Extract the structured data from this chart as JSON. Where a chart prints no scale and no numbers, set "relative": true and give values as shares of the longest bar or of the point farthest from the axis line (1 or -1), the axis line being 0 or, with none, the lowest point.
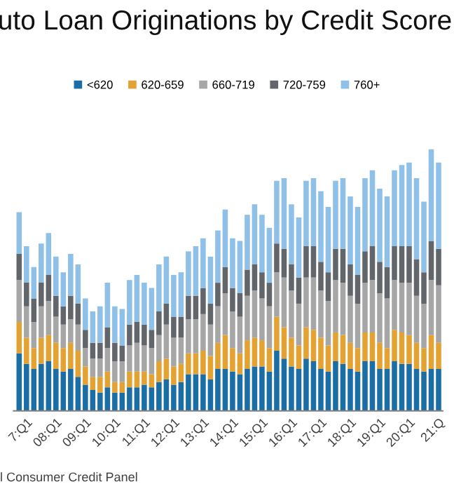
{
  "chart_data": {
    "type": "bar",
    "title": "uto Loan Originations by Credit Score",
    "stacked": true,
    "relative": true,
    "legend": "top",
    "categories": [
      null,
      "7:Q1",
      null,
      null,
      null,
      "08:Q1",
      null,
      null,
      null,
      "09:Q1",
      null,
      null,
      null,
      "10:Q1",
      null,
      null,
      null,
      "11:Q1",
      null,
      null,
      null,
      "12:Q1",
      null,
      null,
      null,
      "13:Q1",
      null,
      null,
      null,
      "14:Q1",
      null,
      null,
      null,
      "15:Q1",
      null,
      null,
      null,
      "16:Q1",
      null,
      null,
      null,
      "17:Q1",
      null,
      null,
      null,
      "18:Q1",
      null,
      null,
      null,
      "19:Q1",
      null,
      null,
      null,
      "20:Q1",
      null,
      null,
      null,
      "21:Q"
    ],
    "series": [
      {
        "name": "<620",
        "color": "#1b6ea5",
        "values": [
          0.22,
          0.18,
          0.16,
          0.18,
          0.19,
          0.16,
          0.15,
          0.16,
          0.13,
          0.1,
          0.08,
          0.07,
          0.09,
          0.07,
          0.07,
          0.09,
          0.09,
          0.1,
          0.09,
          0.11,
          0.12,
          0.1,
          0.11,
          0.14,
          0.14,
          0.14,
          0.12,
          0.16,
          0.16,
          0.15,
          0.14,
          0.16,
          0.17,
          0.17,
          0.15,
          0.23,
          0.2,
          0.17,
          0.16,
          0.2,
          0.19,
          0.16,
          0.15,
          0.19,
          0.18,
          0.16,
          0.15,
          0.19,
          0.19,
          0.16,
          0.16,
          0.19,
          0.18,
          0.18,
          0.16,
          0.15,
          0.16,
          0.16
        ]
      },
      {
        "name": "620-659",
        "color": "#e3a232",
        "values": [
          0.12,
          0.1,
          0.08,
          0.1,
          0.1,
          0.1,
          0.09,
          0.1,
          0.1,
          0.07,
          0.05,
          0.06,
          0.06,
          0.04,
          0.04,
          0.06,
          0.06,
          0.05,
          0.05,
          0.08,
          0.08,
          0.07,
          0.07,
          0.08,
          0.08,
          0.09,
          0.09,
          0.1,
          0.13,
          0.09,
          0.08,
          0.11,
          0.11,
          0.1,
          0.09,
          0.13,
          0.12,
          0.11,
          0.09,
          0.12,
          0.12,
          0.12,
          0.1,
          0.11,
          0.11,
          0.1,
          0.09,
          0.11,
          0.11,
          0.1,
          0.08,
          0.12,
          0.12,
          0.11,
          0.1,
          0.09,
          0.13,
          0.1
        ]
      },
      {
        "name": "660-719",
        "color": "#a6a6a6",
        "values": [
          0.16,
          0.12,
          0.1,
          0.12,
          0.13,
          0.1,
          0.09,
          0.09,
          0.1,
          0.07,
          0.07,
          0.07,
          0.09,
          0.08,
          0.08,
          0.1,
          0.11,
          0.1,
          0.1,
          0.1,
          0.13,
          0.11,
          0.1,
          0.13,
          0.13,
          0.14,
          0.12,
          0.14,
          0.16,
          0.14,
          0.14,
          0.17,
          0.18,
          0.16,
          0.16,
          0.17,
          0.19,
          0.18,
          0.16,
          0.19,
          0.2,
          0.18,
          0.17,
          0.2,
          0.2,
          0.18,
          0.17,
          0.19,
          0.2,
          0.19,
          0.19,
          0.19,
          0.19,
          0.2,
          0.18,
          0.17,
          0.21,
          0.22
        ]
      },
      {
        "name": "720-759",
        "color": "#62666b",
        "values": [
          0.1,
          0.09,
          0.09,
          0.09,
          0.1,
          0.08,
          0.07,
          0.09,
          0.08,
          0.07,
          0.06,
          0.06,
          0.08,
          0.07,
          0.06,
          0.08,
          0.08,
          0.08,
          0.07,
          0.09,
          0.08,
          0.08,
          0.08,
          0.09,
          0.09,
          0.1,
          0.08,
          0.09,
          0.1,
          0.09,
          0.09,
          0.1,
          0.1,
          0.1,
          0.09,
          0.11,
          0.11,
          0.1,
          0.1,
          0.12,
          0.12,
          0.11,
          0.11,
          0.12,
          0.13,
          0.12,
          0.11,
          0.12,
          0.13,
          0.12,
          0.12,
          0.13,
          0.14,
          0.14,
          0.14,
          0.12,
          0.15,
          0.14
        ]
      },
      {
        "name": "760+",
        "color": "#8fc0e8",
        "values": [
          0.16,
          0.14,
          0.12,
          0.15,
          0.16,
          0.15,
          0.13,
          0.16,
          0.15,
          0.12,
          0.12,
          0.14,
          0.17,
          0.14,
          0.14,
          0.17,
          0.18,
          0.16,
          0.16,
          0.18,
          0.18,
          0.16,
          0.17,
          0.17,
          0.19,
          0.19,
          0.18,
          0.2,
          0.22,
          0.19,
          0.2,
          0.21,
          0.23,
          0.22,
          0.21,
          0.24,
          0.27,
          0.23,
          0.23,
          0.25,
          0.26,
          0.27,
          0.25,
          0.26,
          0.27,
          0.26,
          0.26,
          0.28,
          0.29,
          0.28,
          0.27,
          0.29,
          0.31,
          0.32,
          0.31,
          0.27,
          0.35,
          0.33
        ]
      }
    ],
    "annotations": [
      "l Consumer Credit Panel"
    ]
  }
}
